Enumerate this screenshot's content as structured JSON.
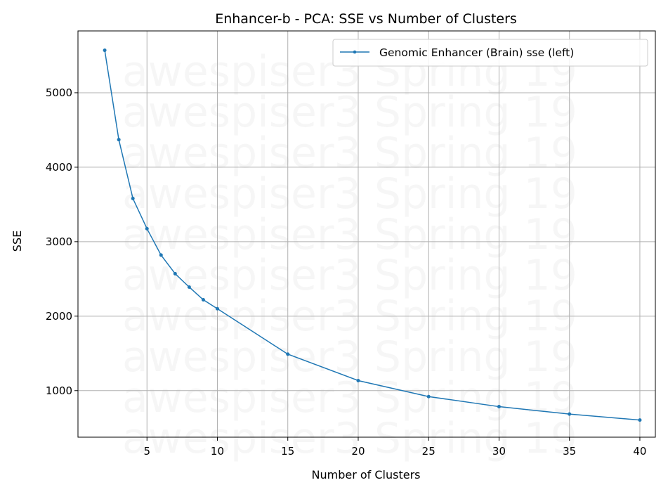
{
  "chart_data": {
    "type": "line",
    "title": "Enhancer-b - PCA: SSE vs Number of Clusters",
    "xlabel": "Number of Clusters",
    "ylabel": "SSE",
    "x": [
      2,
      3,
      4,
      5,
      6,
      7,
      8,
      9,
      10,
      15,
      20,
      25,
      30,
      35,
      40
    ],
    "series": [
      {
        "name": "Genomic Enhancer (Brain) sse (left)",
        "values": [
          5570,
          4370,
          3580,
          3175,
          2820,
          2570,
          2390,
          2220,
          2100,
          1490,
          1135,
          920,
          785,
          685,
          605
        ],
        "color": "#1f77b4"
      }
    ],
    "xlim": [
      0.1,
      41.1
    ],
    "ylim": [
      375,
      5830
    ],
    "xticks": [
      5,
      10,
      15,
      20,
      25,
      30,
      35,
      40
    ],
    "yticks": [
      1000,
      2000,
      3000,
      4000,
      5000
    ],
    "grid": true,
    "legend_position": "top-right",
    "watermark": "awespiser3 Spring 19"
  }
}
